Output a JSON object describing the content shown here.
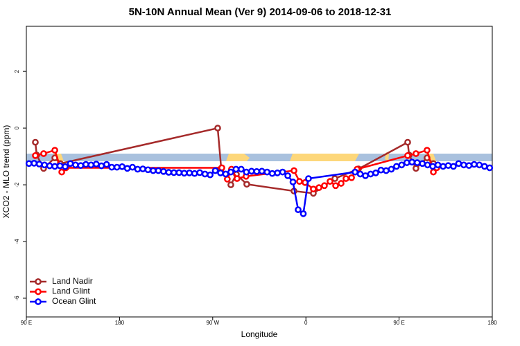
{
  "chart_data": {
    "type": "line",
    "title": "5N-10N Annual Mean (Ver 9)   2014-09-06 to 2018-12-31",
    "x_label": "Longitude",
    "y_label": "XCO2 - MLO trend (ppm)",
    "xlim": [
      90,
      540
    ],
    "ylim": [
      -6.66,
      3.59
    ],
    "xticks": [
      {
        "value": 90,
        "label": "90 E"
      },
      180,
      {
        "value": 270,
        "label": "90 W"
      },
      {
        "value": 360,
        "label": "0"
      },
      {
        "value": 450,
        "label": "90 E"
      },
      {
        "value": 540,
        "label": "180"
      }
    ],
    "yticks": [
      -6,
      -4,
      -2,
      0,
      2
    ],
    "legend": "bottom-left",
    "series": [
      {
        "name": "Land Nadir",
        "color": "#a52a2a",
        "x": [
          98.7,
          100,
          106.7,
          117.5,
          122.8,
          274.8,
          278.2,
          287.5,
          292.9,
          302.9,
          348.5,
          367.2,
          388,
          410.8,
          458.3,
          459.7,
          466.3,
          477,
          483.1
        ],
        "values": [
          -0.5,
          -0.95,
          -1.42,
          -1.05,
          -1.25,
          0,
          -1.42,
          -2.0,
          -1.63,
          -1.98,
          -2.22,
          -2.3,
          -1.78,
          -1.44,
          -0.5,
          -0.95,
          -1.42,
          -1.05,
          -1.25
        ]
      },
      {
        "name": "Land Glint",
        "color": "#ff0000",
        "x": [
          98.7,
          106.7,
          117.5,
          124.2,
          128.2,
          278.8,
          284.1,
          288.1,
          293.5,
          302.2,
          348.5,
          353.8,
          359.2,
          367.2,
          372.6,
          377.9,
          383.3,
          388.7,
          394,
          398.7,
          404.1,
          409.4,
          458.3,
          466.3,
          477,
          483.1,
          486.4
        ],
        "values": [
          -0.97,
          -0.9,
          -0.78,
          -1.55,
          -1.4,
          -1.4,
          -1.8,
          -1.45,
          -1.78,
          -1.7,
          -1.5,
          -1.88,
          -1.92,
          -2.15,
          -2.1,
          -2.03,
          -1.88,
          -2.03,
          -1.95,
          -1.78,
          -1.75,
          -1.45,
          -0.97,
          -0.9,
          -0.78,
          -1.55,
          -1.4
        ]
      },
      {
        "name": "Ocean Glint",
        "color": "#0000ff",
        "x": [
          92.5,
          97.5,
          102.5,
          107.5,
          112.5,
          117.5,
          122.5,
          127.5,
          132.5,
          137.5,
          142.5,
          147.5,
          152.5,
          157.5,
          162.5,
          167.5,
          172.5,
          177.5,
          182.5,
          187.5,
          192.5,
          197.5,
          202.5,
          207.5,
          212.5,
          217.5,
          222.5,
          227.5,
          232.5,
          237.5,
          242.5,
          247.5,
          252.5,
          257.5,
          262.5,
          267.5,
          272.5,
          277.5,
          282.5,
          287.5,
          292.5,
          297.5,
          302.5,
          307.5,
          312.5,
          317.5,
          322.5,
          327.5,
          332.5,
          337.5,
          342.5,
          347.5,
          352.5,
          357.5,
          362.5,
          407.5,
          412.5,
          417.5,
          422.5,
          427.5,
          432.5,
          437.5,
          442.5,
          447.5,
          452.5,
          457.5,
          462.5,
          467.5,
          472.5,
          477.5,
          482.5,
          487.5,
          492.5,
          497.5,
          502.5,
          507.5,
          512.5,
          517.5,
          522.5,
          527.5,
          532.5,
          537.5
        ],
        "values": [
          -1.25,
          -1.24,
          -1.27,
          -1.3,
          -1.33,
          -1.35,
          -1.33,
          -1.36,
          -1.25,
          -1.3,
          -1.32,
          -1.28,
          -1.3,
          -1.27,
          -1.33,
          -1.28,
          -1.38,
          -1.38,
          -1.36,
          -1.42,
          -1.38,
          -1.45,
          -1.44,
          -1.47,
          -1.5,
          -1.5,
          -1.53,
          -1.56,
          -1.57,
          -1.57,
          -1.59,
          -1.58,
          -1.6,
          -1.57,
          -1.62,
          -1.65,
          -1.5,
          -1.58,
          -1.62,
          -1.55,
          -1.45,
          -1.45,
          -1.55,
          -1.52,
          -1.53,
          -1.52,
          -1.55,
          -1.6,
          -1.58,
          -1.55,
          -1.68,
          -1.9,
          -2.88,
          -3.02,
          -1.78,
          -1.55,
          -1.62,
          -1.68,
          -1.62,
          -1.58,
          -1.48,
          -1.5,
          -1.45,
          -1.35,
          -1.3,
          -1.22,
          -1.2,
          -1.22,
          -1.25,
          -1.3,
          -1.35,
          -1.3,
          -1.35,
          -1.32,
          -1.35,
          -1.25,
          -1.3,
          -1.32,
          -1.28,
          -1.3,
          -1.35,
          -1.4
        ]
      }
    ]
  }
}
